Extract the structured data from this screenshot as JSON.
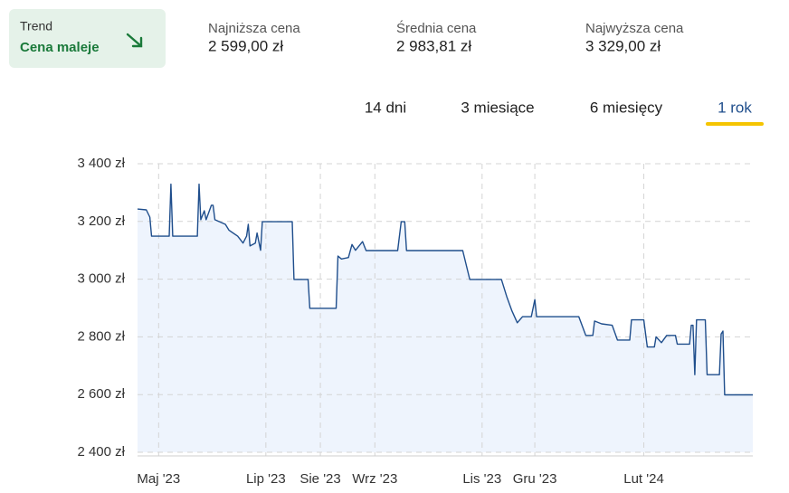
{
  "trend": {
    "label": "Trend",
    "value": "Cena maleje"
  },
  "stats": [
    {
      "label": "Najniższa cena",
      "value": "2 599,00 zł"
    },
    {
      "label": "Średnia cena",
      "value": "2 983,81 zł"
    },
    {
      "label": "Najwyższa cena",
      "value": "3 329,00 zł"
    }
  ],
  "tabs": [
    "14 dni",
    "3 miesiące",
    "6 miesięcy",
    "1 rok"
  ],
  "selected_tab": 3,
  "chart_data": {
    "type": "line",
    "x": [
      -12,
      -7,
      -5,
      -4,
      6,
      7,
      8,
      22,
      23,
      24,
      26,
      27,
      30,
      31,
      32,
      38,
      40,
      45,
      48,
      50,
      51,
      52,
      55,
      56,
      58,
      59,
      76,
      77,
      85,
      86,
      101,
      102,
      104,
      108,
      110,
      112,
      116,
      118,
      136,
      138,
      140,
      141,
      173,
      175,
      177,
      195,
      198,
      201,
      204,
      207,
      212,
      214,
      215,
      239,
      243,
      247,
      248,
      252,
      258,
      261,
      268,
      269,
      276,
      278,
      282,
      283,
      286,
      289,
      294,
      295,
      302,
      303,
      304,
      305,
      306,
      311,
      312,
      319,
      320,
      321,
      322,
      338
    ],
    "values": [
      3243,
      3240,
      3215,
      3149,
      3149,
      3329,
      3149,
      3149,
      3329,
      3206,
      3237,
      3206,
      3256,
      3256,
      3206,
      3190,
      3170,
      3149,
      3125,
      3149,
      3190,
      3115,
      3125,
      3160,
      3100,
      3199,
      3199,
      2999,
      2999,
      2899,
      2899,
      3080,
      3070,
      3075,
      3120,
      3100,
      3130,
      3099,
      3099,
      3199,
      3199,
      3099,
      3099,
      3049,
      2999,
      2999,
      2940,
      2890,
      2849,
      2870,
      2870,
      2929,
      2870,
      2870,
      2805,
      2805,
      2855,
      2845,
      2840,
      2789,
      2789,
      2859,
      2859,
      2765,
      2765,
      2800,
      2780,
      2805,
      2805,
      2775,
      2775,
      2840,
      2840,
      2669,
      2859,
      2859,
      2669,
      2669,
      2810,
      2820,
      2599,
      2599
    ],
    "color": "#1f4e8c",
    "fill_color": "#eef4fd",
    "xlim": [
      -12,
      338
    ],
    "xticks": [
      {
        "value": 0,
        "label": "Maj '23"
      },
      {
        "value": 61,
        "label": "Lip '23"
      },
      {
        "value": 92,
        "label": "Sie '23"
      },
      {
        "value": 123,
        "label": "Wrz '23"
      },
      {
        "value": 184,
        "label": "Lis '23"
      },
      {
        "value": 214,
        "label": "Gru '23"
      },
      {
        "value": 276,
        "label": "Lut '24"
      }
    ],
    "ylim": [
      2400,
      3400
    ],
    "yticks": [
      {
        "value": 2400,
        "label": "2 400 zł"
      },
      {
        "value": 2600,
        "label": "2 600 zł"
      },
      {
        "value": 2800,
        "label": "2 800 zł"
      },
      {
        "value": 3000,
        "label": "3 000 zł"
      },
      {
        "value": 3200,
        "label": "3 200 zł"
      },
      {
        "value": 3400,
        "label": "3 400 zł"
      }
    ],
    "grid": true
  }
}
